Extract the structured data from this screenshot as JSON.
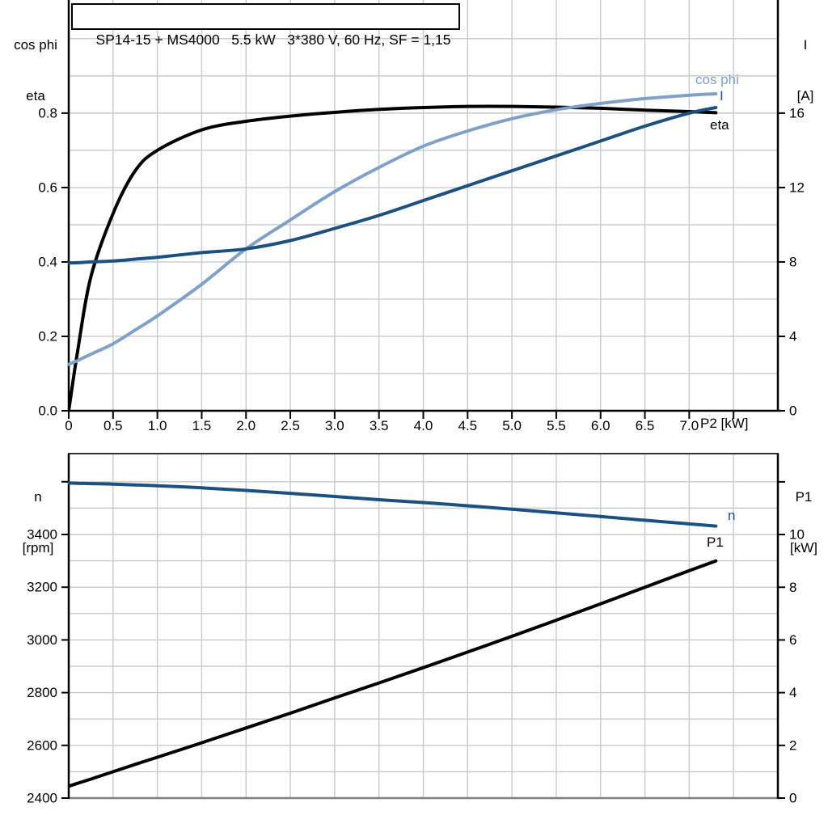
{
  "title_box": {
    "text": "SP14-15 + MS4000   5.5 kW   3*380 V, 60 Hz, SF = 1,15"
  },
  "colors": {
    "black": "#000000",
    "dark_blue": "#1b5080",
    "light_blue": "#7fa1c8",
    "grid": "#c6cacd",
    "frame_gray": "#7f7f7f",
    "frame_dark": "#333333"
  },
  "chart_data": [
    {
      "type": "line",
      "name": "motor-performance-top-chart",
      "x_axis": {
        "label": "P2 [kW]",
        "range": [
          0,
          8
        ],
        "tick_values": [
          0,
          0.5,
          1,
          1.5,
          2,
          2.5,
          3,
          3.5,
          4,
          4.5,
          5,
          5.5,
          6,
          6.5,
          7
        ],
        "tick_labels": [
          "0",
          "0.5",
          "1.0",
          "1.5",
          "2.0",
          "2.5",
          "3.0",
          "3.5",
          "4.0",
          "4.5",
          "5.0",
          "5.5",
          "6.0",
          "6.5",
          "7.0"
        ],
        "extra_tick_values": [
          7.5
        ]
      },
      "left_axis": {
        "label_lines": [
          "cos phi",
          "eta"
        ],
        "range": [
          0,
          1.104
        ],
        "tick_values": [
          0,
          0.2,
          0.4,
          0.6,
          0.8
        ],
        "tick_labels": [
          "0.0",
          "0.2",
          "0.4",
          "0.6",
          "0.8"
        ]
      },
      "right_axis": {
        "label_lines": [
          "I",
          "[A]"
        ],
        "range": [
          0,
          22.08
        ],
        "tick_values": [
          0,
          4,
          8,
          12,
          16
        ],
        "tick_labels": [
          "0",
          "4",
          "8",
          "12",
          "16"
        ]
      },
      "x_common": [
        0,
        0.1,
        0.25,
        0.5,
        0.75,
        1,
        1.5,
        2,
        2.5,
        3,
        3.5,
        4,
        4.5,
        5,
        5.5,
        6,
        6.5,
        7,
        7.3
      ],
      "series": [
        {
          "name": "eta",
          "label": "eta",
          "axis": "left",
          "color_key": "black",
          "y": [
            0,
            0.16,
            0.36,
            0.53,
            0.645,
            0.7,
            0.755,
            0.778,
            0.792,
            0.802,
            0.81,
            0.815,
            0.818,
            0.818,
            0.816,
            0.813,
            0.808,
            0.804,
            0.801
          ]
        },
        {
          "name": "cos-phi",
          "label": "cos phi",
          "axis": "left",
          "color_key": "light_blue",
          "y": [
            0.125,
            0.135,
            0.152,
            0.18,
            0.217,
            0.255,
            0.34,
            0.435,
            0.513,
            0.589,
            0.654,
            0.711,
            0.752,
            0.785,
            0.809,
            0.826,
            0.839,
            0.848,
            0.852
          ]
        },
        {
          "name": "current",
          "label": "I",
          "axis": "right",
          "color_key": "dark_blue",
          "y": [
            7.95,
            7.96,
            8.0,
            8.05,
            8.15,
            8.25,
            8.5,
            8.7,
            9.15,
            9.8,
            10.5,
            11.3,
            12.1,
            12.9,
            13.7,
            14.5,
            15.3,
            16.0,
            16.3
          ]
        }
      ]
    },
    {
      "type": "line",
      "name": "speed-power-bottom-chart",
      "x_axis": {
        "label": "",
        "range": [
          0,
          8
        ],
        "tick_values": [],
        "tick_labels": [],
        "extra_tick_values": []
      },
      "left_axis": {
        "label_lines": [
          "n",
          "[rpm]"
        ],
        "range": [
          2400,
          3706.7
        ],
        "tick_values": [
          2400,
          2600,
          2800,
          3000,
          3200,
          3400,
          3600
        ],
        "tick_labels": [
          "2400",
          "2600",
          "2800",
          "3000",
          "3200",
          "3400",
          ""
        ]
      },
      "right_axis": {
        "label_lines": [
          "P1",
          "[kW]"
        ],
        "range": [
          0,
          13.07
        ],
        "tick_values": [
          0,
          2,
          4,
          6,
          8,
          10,
          12
        ],
        "tick_labels": [
          "0",
          "2",
          "4",
          "6",
          "8",
          "10",
          ""
        ]
      },
      "x_common": [
        0,
        0.1,
        0.25,
        0.5,
        0.75,
        1,
        1.5,
        2,
        2.5,
        3,
        3.5,
        4,
        4.5,
        5,
        5.5,
        6,
        6.5,
        7,
        7.3
      ],
      "series": [
        {
          "name": "speed",
          "label": "n",
          "axis": "left",
          "color_key": "dark_blue",
          "y": [
            3595,
            3594,
            3593,
            3591,
            3588,
            3585,
            3577,
            3567,
            3556,
            3544,
            3532,
            3521,
            3509,
            3496,
            3482,
            3468,
            3454,
            3440,
            3432
          ]
        },
        {
          "name": "input-power",
          "label": "P1",
          "axis": "right",
          "color_key": "black",
          "y": [
            0.45,
            0.56,
            0.72,
            1.0,
            1.28,
            1.55,
            2.1,
            2.66,
            3.22,
            3.8,
            4.37,
            4.95,
            5.54,
            6.14,
            6.75,
            7.37,
            8.0,
            8.63,
            9.0
          ]
        }
      ]
    }
  ]
}
